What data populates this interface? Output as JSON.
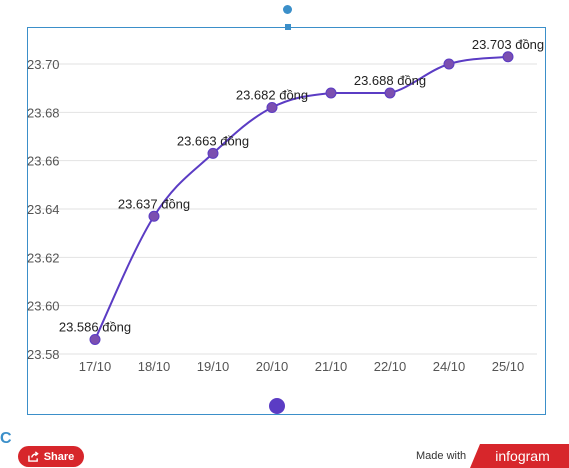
{
  "chart_data": {
    "type": "line",
    "categories": [
      "17/10",
      "18/10",
      "19/10",
      "20/10",
      "21/10",
      "22/10",
      "24/10",
      "25/10"
    ],
    "series": [
      {
        "values": [
          23.586,
          23.637,
          23.663,
          23.682,
          23.688,
          23.688,
          23.7,
          23.703
        ],
        "labels": [
          "23.586 đồng",
          "23.637 đồng",
          "23.663 đồng",
          "23.682 đồng",
          "",
          "23.688 đồng",
          "",
          "23.703 đồng"
        ],
        "color": "#5b3cc4",
        "marker_color": "#7b4fb0"
      }
    ],
    "yticks": [
      "23.58",
      "23.60",
      "23.62",
      "23.64",
      "23.66",
      "23.68",
      "23.70"
    ],
    "ylim": [
      23.58,
      23.7
    ],
    "grid": true
  },
  "footer": {
    "share_label": "Share",
    "made_with": "Made with",
    "brand": "infogram"
  },
  "colors": {
    "accent": "#d7262b",
    "selection": "#3b8fc9",
    "handle": "#5b3cc4"
  }
}
